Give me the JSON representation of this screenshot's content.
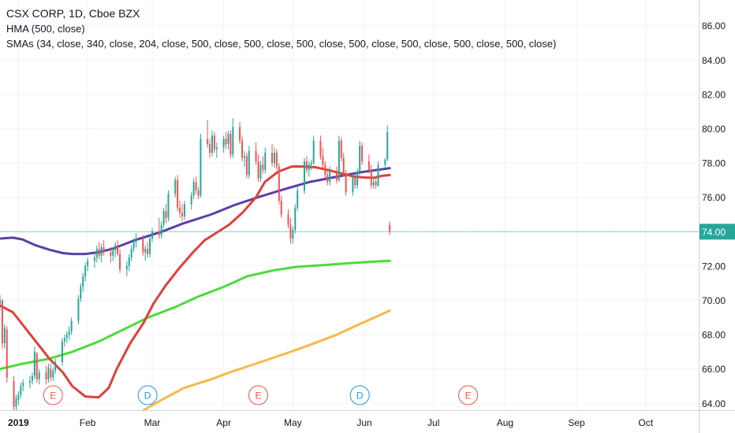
{
  "legend": {
    "title": "CSX CORP, 1D, Cboe BZX",
    "hma": "HMA (500, close)",
    "smas": "SMAs (34, close, 340, close, 204, close, 500, close, 500, close, 500, close, 500, close, 500, close, 500, close, 500, close)"
  },
  "colors": {
    "up": "#26a69a",
    "down": "#ef5350",
    "hma": "#5b3fa8",
    "sma34": "#e0403a",
    "sma204": "#4cdb3c",
    "sma340": "#f7b84a",
    "price_line": "#26a69a",
    "price_label_bg": "#26a69a",
    "earnings": "#ef5350",
    "dividend": "#2196f3"
  },
  "chart_data": {
    "type": "candlestick",
    "y_ticks": [
      "64.00",
      "66.00",
      "68.00",
      "70.00",
      "72.00",
      "74.00",
      "76.00",
      "78.00",
      "80.00",
      "82.00",
      "84.00",
      "86.00"
    ],
    "ylim": [
      63.6,
      87.5
    ],
    "x_ticks": [
      "2019",
      "Feb",
      "Mar",
      "Apr",
      "May",
      "Jun",
      "Jul",
      "Aug",
      "Sep",
      "Oct"
    ],
    "x_tick_dates": [
      "2019-01-02",
      "2019-02-01",
      "2019-03-01",
      "2019-04-01",
      "2019-05-01",
      "2019-06-01",
      "2019-07-01",
      "2019-08-01",
      "2019-09-01",
      "2019-10-01"
    ],
    "xlim": [
      "2018-12-25",
      "2019-10-24"
    ],
    "last_price": "74.00",
    "last_close": 74.0,
    "event_markers": [
      {
        "date": "2019-01-17",
        "label": "E",
        "kind": "earnings"
      },
      {
        "date": "2019-02-27",
        "label": "D",
        "kind": "dividend"
      },
      {
        "date": "2019-04-16",
        "label": "E",
        "kind": "earnings"
      },
      {
        "date": "2019-05-30",
        "label": "D",
        "kind": "dividend"
      },
      {
        "date": "2019-07-16",
        "label": "E",
        "kind": "earnings"
      }
    ],
    "candles_start_date": "2018-12-25",
    "candles": [
      [
        69.8,
        70.3,
        69.4,
        70.0
      ],
      [
        70.0,
        70.1,
        67.2,
        67.5
      ],
      [
        67.5,
        68.6,
        67.2,
        68.4
      ],
      [
        68.3,
        68.5,
        65.2,
        65.5
      ],
      [
        65.3,
        65.6,
        63.6,
        63.8
      ],
      [
        63.8,
        64.5,
        63.6,
        64.3
      ],
      [
        64.2,
        64.7,
        63.9,
        64.5
      ],
      [
        64.5,
        65.2,
        64.3,
        65.0
      ],
      [
        65.0,
        65.4,
        64.7,
        65.2
      ],
      [
        65.2,
        65.6,
        64.9,
        65.3
      ],
      [
        65.3,
        65.8,
        65.1,
        65.6
      ],
      [
        65.6,
        67.3,
        65.4,
        67.0
      ],
      [
        66.9,
        67.0,
        65.2,
        65.4
      ],
      [
        65.4,
        66.0,
        65.1,
        65.8
      ],
      [
        65.8,
        66.2,
        65.1,
        65.4
      ],
      [
        65.4,
        66.3,
        65.2,
        66.1
      ],
      [
        66.0,
        66.3,
        65.3,
        65.5
      ],
      [
        65.5,
        66.1,
        65.3,
        65.9
      ],
      [
        65.9,
        66.6,
        65.7,
        66.4
      ],
      [
        66.4,
        67.8,
        66.2,
        67.6
      ],
      [
        67.6,
        68.0,
        67.3,
        67.8
      ],
      [
        67.8,
        68.2,
        67.5,
        68.0
      ],
      [
        68.0,
        68.5,
        67.7,
        68.2
      ],
      [
        68.2,
        69.0,
        68.0,
        68.8
      ],
      [
        68.8,
        70.3,
        68.6,
        70.1
      ],
      [
        70.1,
        71.0,
        69.9,
        70.8
      ],
      [
        70.8,
        71.6,
        70.5,
        71.4
      ],
      [
        71.4,
        72.2,
        71.1,
        72.0
      ],
      [
        72.0,
        72.5,
        71.7,
        72.3
      ],
      [
        72.3,
        72.8,
        71.9,
        72.5
      ],
      [
        72.5,
        73.2,
        72.2,
        73.0
      ],
      [
        73.0,
        73.4,
        72.4,
        72.6
      ],
      [
        72.6,
        73.3,
        72.2,
        73.1
      ],
      [
        73.1,
        73.5,
        72.6,
        72.8
      ],
      [
        72.8,
        73.1,
        72.2,
        72.6
      ],
      [
        72.6,
        73.1,
        72.3,
        72.9
      ],
      [
        72.9,
        73.4,
        72.5,
        73.2
      ],
      [
        73.2,
        73.5,
        72.6,
        72.7
      ],
      [
        72.7,
        73.0,
        71.6,
        71.8
      ],
      [
        71.8,
        72.3,
        71.4,
        72.0
      ],
      [
        72.0,
        72.7,
        71.7,
        72.5
      ],
      [
        72.5,
        73.2,
        72.3,
        73.0
      ],
      [
        73.0,
        73.6,
        72.8,
        73.4
      ],
      [
        73.4,
        73.9,
        73.1,
        73.6
      ],
      [
        73.6,
        73.8,
        72.6,
        72.8
      ],
      [
        72.8,
        73.2,
        72.3,
        73.0
      ],
      [
        73.0,
        73.4,
        72.5,
        72.7
      ],
      [
        72.7,
        73.8,
        72.5,
        73.6
      ],
      [
        73.6,
        74.2,
        73.4,
        74.0
      ],
      [
        74.0,
        74.8,
        73.6,
        73.8
      ],
      [
        73.8,
        74.6,
        73.6,
        74.4
      ],
      [
        74.4,
        75.4,
        74.2,
        75.2
      ],
      [
        75.2,
        75.6,
        74.5,
        74.8
      ],
      [
        74.8,
        76.4,
        74.6,
        76.2
      ],
      [
        76.2,
        77.2,
        76.0,
        77.0
      ],
      [
        77.0,
        77.3,
        75.2,
        75.4
      ],
      [
        75.4,
        75.8,
        74.8,
        75.1
      ],
      [
        75.1,
        75.6,
        74.6,
        74.9
      ],
      [
        74.9,
        75.8,
        74.7,
        75.6
      ],
      [
        75.6,
        76.3,
        75.3,
        76.1
      ],
      [
        76.1,
        77.1,
        75.9,
        76.9
      ],
      [
        76.9,
        77.2,
        76.2,
        76.4
      ],
      [
        76.4,
        76.6,
        75.9,
        76.1
      ],
      [
        76.1,
        79.7,
        76.0,
        79.4
      ],
      [
        79.4,
        80.5,
        78.9,
        79.1
      ],
      [
        79.1,
        79.4,
        78.3,
        78.6
      ],
      [
        78.6,
        79.9,
        78.4,
        79.6
      ],
      [
        79.6,
        79.8,
        78.6,
        78.8
      ],
      [
        78.8,
        79.2,
        78.3,
        78.9
      ],
      [
        78.9,
        79.6,
        78.6,
        79.4
      ],
      [
        79.4,
        79.8,
        78.8,
        79.1
      ],
      [
        79.1,
        79.9,
        78.8,
        79.7
      ],
      [
        79.7,
        79.9,
        78.3,
        78.5
      ],
      [
        78.5,
        80.6,
        78.3,
        80.1
      ],
      [
        80.1,
        80.4,
        79.1,
        79.3
      ],
      [
        79.3,
        79.6,
        78.1,
        78.3
      ],
      [
        78.3,
        78.7,
        77.8,
        78.4
      ],
      [
        78.4,
        78.6,
        77.1,
        77.3
      ],
      [
        77.3,
        79.0,
        77.1,
        78.7
      ],
      [
        78.7,
        79.2,
        77.9,
        78.1
      ],
      [
        78.1,
        78.5,
        76.9,
        77.1
      ],
      [
        77.1,
        78.1,
        76.9,
        77.9
      ],
      [
        77.9,
        78.4,
        77.4,
        77.6
      ],
      [
        77.6,
        78.9,
        77.4,
        78.6
      ],
      [
        78.6,
        79.1,
        77.8,
        78.0
      ],
      [
        78.0,
        78.9,
        77.7,
        78.6
      ],
      [
        78.6,
        78.8,
        77.6,
        77.8
      ],
      [
        77.8,
        78.0,
        75.6,
        75.8
      ],
      [
        75.8,
        76.1,
        74.8,
        75.0
      ],
      [
        75.0,
        75.3,
        74.2,
        74.4
      ],
      [
        74.4,
        74.8,
        73.3,
        73.6
      ],
      [
        73.6,
        74.3,
        73.3,
        74.1
      ],
      [
        74.1,
        75.6,
        73.9,
        75.4
      ],
      [
        75.4,
        76.6,
        75.2,
        76.4
      ],
      [
        76.4,
        78.3,
        76.2,
        78.1
      ],
      [
        78.1,
        78.4,
        77.4,
        77.6
      ],
      [
        77.6,
        78.1,
        77.2,
        77.9
      ],
      [
        77.9,
        78.2,
        77.6,
        78.0
      ],
      [
        78.0,
        79.6,
        77.9,
        79.3
      ],
      [
        79.3,
        79.6,
        78.2,
        78.4
      ],
      [
        78.4,
        78.9,
        77.7,
        77.9
      ],
      [
        77.9,
        78.1,
        77.1,
        77.3
      ],
      [
        77.3,
        77.6,
        76.7,
        76.9
      ],
      [
        76.9,
        77.8,
        76.7,
        77.5
      ],
      [
        77.5,
        77.8,
        76.8,
        77.0
      ],
      [
        77.0,
        79.6,
        76.9,
        79.3
      ],
      [
        79.3,
        79.5,
        78.1,
        78.3
      ],
      [
        78.3,
        78.6,
        77.2,
        77.4
      ],
      [
        77.4,
        77.6,
        76.1,
        76.3
      ],
      [
        76.3,
        77.4,
        76.1,
        77.2
      ],
      [
        77.2,
        77.4,
        76.5,
        76.7
      ],
      [
        76.7,
        77.7,
        76.5,
        77.5
      ],
      [
        77.5,
        79.3,
        77.3,
        79.0
      ],
      [
        79.0,
        79.2,
        77.9,
        78.1
      ],
      [
        78.1,
        78.5,
        77.4,
        77.6
      ],
      [
        77.6,
        77.9,
        76.5,
        76.7
      ],
      [
        76.7,
        77.2,
        76.5,
        76.9
      ],
      [
        76.9,
        77.2,
        76.5,
        76.7
      ],
      [
        76.7,
        78.1,
        76.6,
        77.9
      ],
      [
        77.9,
        78.3,
        77.7,
        78.2
      ],
      [
        78.2,
        80.2,
        78.1,
        79.8
      ],
      [
        74.4,
        74.6,
        73.8,
        74.0
      ]
    ],
    "hma": [
      [
        0,
        73.6
      ],
      [
        20,
        73.65
      ],
      [
        40,
        73.55
      ],
      [
        60,
        73.2
      ],
      [
        80,
        72.95
      ],
      [
        100,
        72.75
      ],
      [
        120,
        72.7
      ],
      [
        140,
        72.7
      ],
      [
        160,
        72.8
      ],
      [
        180,
        73.0
      ],
      [
        200,
        73.25
      ],
      [
        220,
        73.5
      ],
      [
        260,
        74.0
      ],
      [
        300,
        74.5
      ],
      [
        340,
        75.0
      ],
      [
        380,
        75.55
      ],
      [
        420,
        76.05
      ],
      [
        460,
        76.5
      ],
      [
        500,
        76.9
      ],
      [
        540,
        77.2
      ],
      [
        580,
        77.45
      ],
      [
        610,
        77.6
      ],
      [
        628,
        77.7
      ]
    ],
    "sma34": [
      [
        0,
        69.7
      ],
      [
        20,
        69.3
      ],
      [
        40,
        68.6
      ],
      [
        60,
        67.6
      ],
      [
        80,
        66.6
      ],
      [
        100,
        65.8
      ],
      [
        120,
        65.0
      ],
      [
        140,
        64.4
      ],
      [
        160,
        64.35
      ],
      [
        175,
        64.9
      ],
      [
        190,
        66.0
      ],
      [
        210,
        67.5
      ],
      [
        230,
        68.7
      ],
      [
        250,
        69.8
      ],
      [
        270,
        70.9
      ],
      [
        290,
        71.9
      ],
      [
        310,
        72.8
      ],
      [
        330,
        73.5
      ],
      [
        350,
        73.9
      ],
      [
        370,
        74.4
      ],
      [
        390,
        75.1
      ],
      [
        410,
        76.0
      ],
      [
        430,
        76.9
      ],
      [
        450,
        77.5
      ],
      [
        470,
        77.8
      ],
      [
        490,
        77.8
      ],
      [
        510,
        77.75
      ],
      [
        530,
        77.6
      ],
      [
        550,
        77.4
      ],
      [
        570,
        77.2
      ],
      [
        590,
        77.15
      ],
      [
        605,
        77.15
      ],
      [
        615,
        77.25
      ],
      [
        628,
        77.3
      ]
    ],
    "sma204": [
      [
        0,
        66.0
      ],
      [
        40,
        66.3
      ],
      [
        80,
        66.6
      ],
      [
        120,
        67.0
      ],
      [
        160,
        67.6
      ],
      [
        200,
        68.3
      ],
      [
        240,
        69.0
      ],
      [
        280,
        69.6
      ],
      [
        320,
        70.2
      ],
      [
        360,
        70.8
      ],
      [
        400,
        71.4
      ],
      [
        440,
        71.75
      ],
      [
        480,
        71.95
      ],
      [
        520,
        72.05
      ],
      [
        560,
        72.15
      ],
      [
        600,
        72.25
      ],
      [
        628,
        72.3
      ]
    ],
    "sma340": [
      [
        230,
        63.6
      ],
      [
        260,
        64.2
      ],
      [
        300,
        64.9
      ],
      [
        340,
        65.4
      ],
      [
        380,
        65.9
      ],
      [
        420,
        66.4
      ],
      [
        460,
        66.9
      ],
      [
        500,
        67.4
      ],
      [
        540,
        68.0
      ],
      [
        580,
        68.6
      ],
      [
        628,
        69.4
      ]
    ]
  }
}
